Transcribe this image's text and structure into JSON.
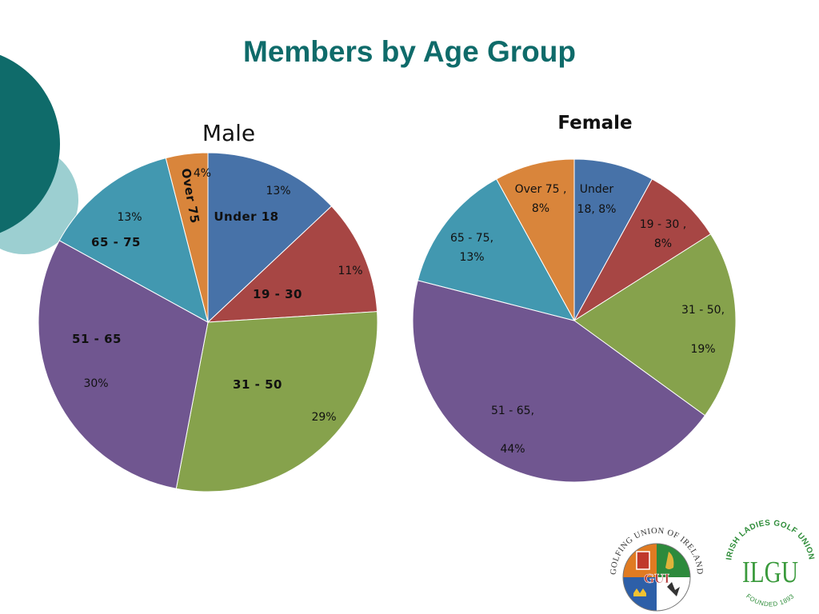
{
  "slide": {
    "title": "Members by Age Group",
    "accent_color": "#0f6b6a",
    "accent_light": "#9ccfd1"
  },
  "chart_data": [
    {
      "type": "pie",
      "title": "Male",
      "categories": [
        "Under 18",
        "19 - 30",
        "31 - 50",
        "51 - 65",
        "65 - 75",
        "Over 75"
      ],
      "values": [
        13,
        11,
        29,
        30,
        13,
        4
      ],
      "value_labels": [
        "13%",
        "11%",
        "29%",
        "30%",
        "13%",
        "4%"
      ],
      "colors": [
        "#4772a8",
        "#a74644",
        "#86a24c",
        "#705690",
        "#4298b0",
        "#d9853b"
      ]
    },
    {
      "type": "pie",
      "title": "Female",
      "categories": [
        "Under 18",
        "19 - 30",
        "31 - 50",
        "51 - 65",
        "65 - 75",
        "Over 75"
      ],
      "values": [
        8,
        8,
        19,
        44,
        13,
        8
      ],
      "data_labels": [
        [
          "Under",
          "18, 8%"
        ],
        [
          "19 - 30 ,",
          "8%"
        ],
        [
          "31 - 50,",
          "19%"
        ],
        [
          "51 - 65,",
          "44%"
        ],
        [
          "65 - 75,",
          "13%"
        ],
        [
          "Over 75 ,",
          "8%"
        ]
      ],
      "colors": [
        "#4772a8",
        "#a74644",
        "#86a24c",
        "#705690",
        "#4298b0",
        "#d9853b"
      ]
    }
  ],
  "logos": {
    "gui": {
      "ring_text": "GOLFING UNION OF IRELAND",
      "center_text": "GUI"
    },
    "ilgu": {
      "ring_text": "IRISH LADIES GOLF UNION",
      "center_text": "ILGU",
      "founded_text": "FOUNDED 1893"
    }
  }
}
